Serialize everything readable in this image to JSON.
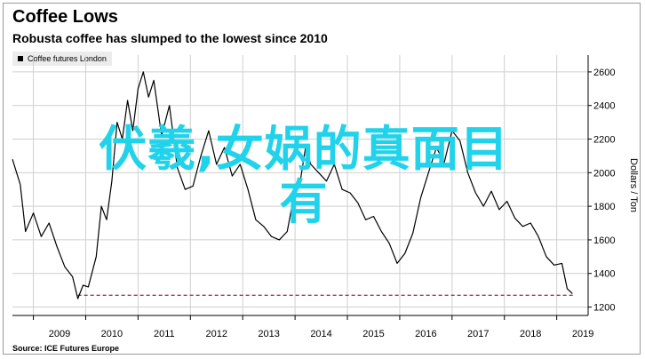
{
  "header": {
    "title": "Coffee Lows",
    "subtitle": "Robusta coffee has slumped to the lowest since 2010"
  },
  "legend": {
    "label": "Coffee futures London"
  },
  "footer": {
    "source": "Source: ICE Futures Europe"
  },
  "overlay": {
    "line1": "伏羲,女娲的真面目",
    "line2": "有"
  },
  "colors": {
    "line": "#000000",
    "reference": "#b0306a",
    "overlay": "#21d3ea",
    "grid": "#cfcfcf"
  },
  "chart_data": {
    "type": "line",
    "title": "Coffee Lows",
    "subtitle": "Robusta coffee has slumped to the lowest since 2010",
    "ylabel": "Dollars / Ton",
    "ylim": [
      1150,
      2700
    ],
    "yticks": [
      1200,
      1400,
      1600,
      1800,
      2000,
      2200,
      2400,
      2600
    ],
    "xlim": [
      2008.6,
      2019.6
    ],
    "xticks": [
      "2009",
      "2010",
      "2011",
      "2012",
      "2013",
      "2014",
      "2015",
      "2016",
      "2017",
      "2018",
      "2019"
    ],
    "grid": true,
    "reference_line": {
      "y": 1270,
      "x_start": 2009.85
    },
    "series": [
      {
        "name": "Coffee futures London",
        "x": [
          2008.6,
          2008.75,
          2008.85,
          2009.0,
          2009.15,
          2009.3,
          2009.45,
          2009.6,
          2009.75,
          2009.85,
          2009.95,
          2010.05,
          2010.2,
          2010.3,
          2010.4,
          2010.5,
          2010.6,
          2010.7,
          2010.8,
          2010.9,
          2011.0,
          2011.1,
          2011.2,
          2011.3,
          2011.45,
          2011.6,
          2011.75,
          2011.9,
          2012.05,
          2012.2,
          2012.35,
          2012.5,
          2012.65,
          2012.8,
          2012.95,
          2013.1,
          2013.25,
          2013.4,
          2013.55,
          2013.7,
          2013.85,
          2014.0,
          2014.1,
          2014.2,
          2014.3,
          2014.45,
          2014.6,
          2014.75,
          2014.9,
          2015.05,
          2015.2,
          2015.35,
          2015.5,
          2015.65,
          2015.8,
          2015.95,
          2016.1,
          2016.25,
          2016.4,
          2016.55,
          2016.7,
          2016.85,
          2017.0,
          2017.15,
          2017.3,
          2017.45,
          2017.6,
          2017.75,
          2017.9,
          2018.05,
          2018.2,
          2018.35,
          2018.5,
          2018.65,
          2018.8,
          2018.95,
          2019.1,
          2019.2,
          2019.3
        ],
        "values": [
          2080,
          1930,
          1650,
          1760,
          1620,
          1700,
          1560,
          1440,
          1380,
          1250,
          1330,
          1320,
          1500,
          1800,
          1720,
          1950,
          2300,
          2200,
          2430,
          2250,
          2500,
          2600,
          2450,
          2550,
          2220,
          2400,
          2030,
          1900,
          1920,
          2100,
          2250,
          2050,
          2150,
          1980,
          2050,
          1900,
          1720,
          1680,
          1620,
          1600,
          1650,
          1900,
          1950,
          2150,
          2050,
          2000,
          1950,
          2050,
          1900,
          1880,
          1820,
          1720,
          1740,
          1650,
          1580,
          1460,
          1520,
          1640,
          1850,
          2000,
          2150,
          2060,
          2250,
          2190,
          2000,
          1880,
          1800,
          1890,
          1780,
          1830,
          1730,
          1680,
          1700,
          1620,
          1500,
          1450,
          1460,
          1310,
          1280
        ]
      }
    ]
  }
}
